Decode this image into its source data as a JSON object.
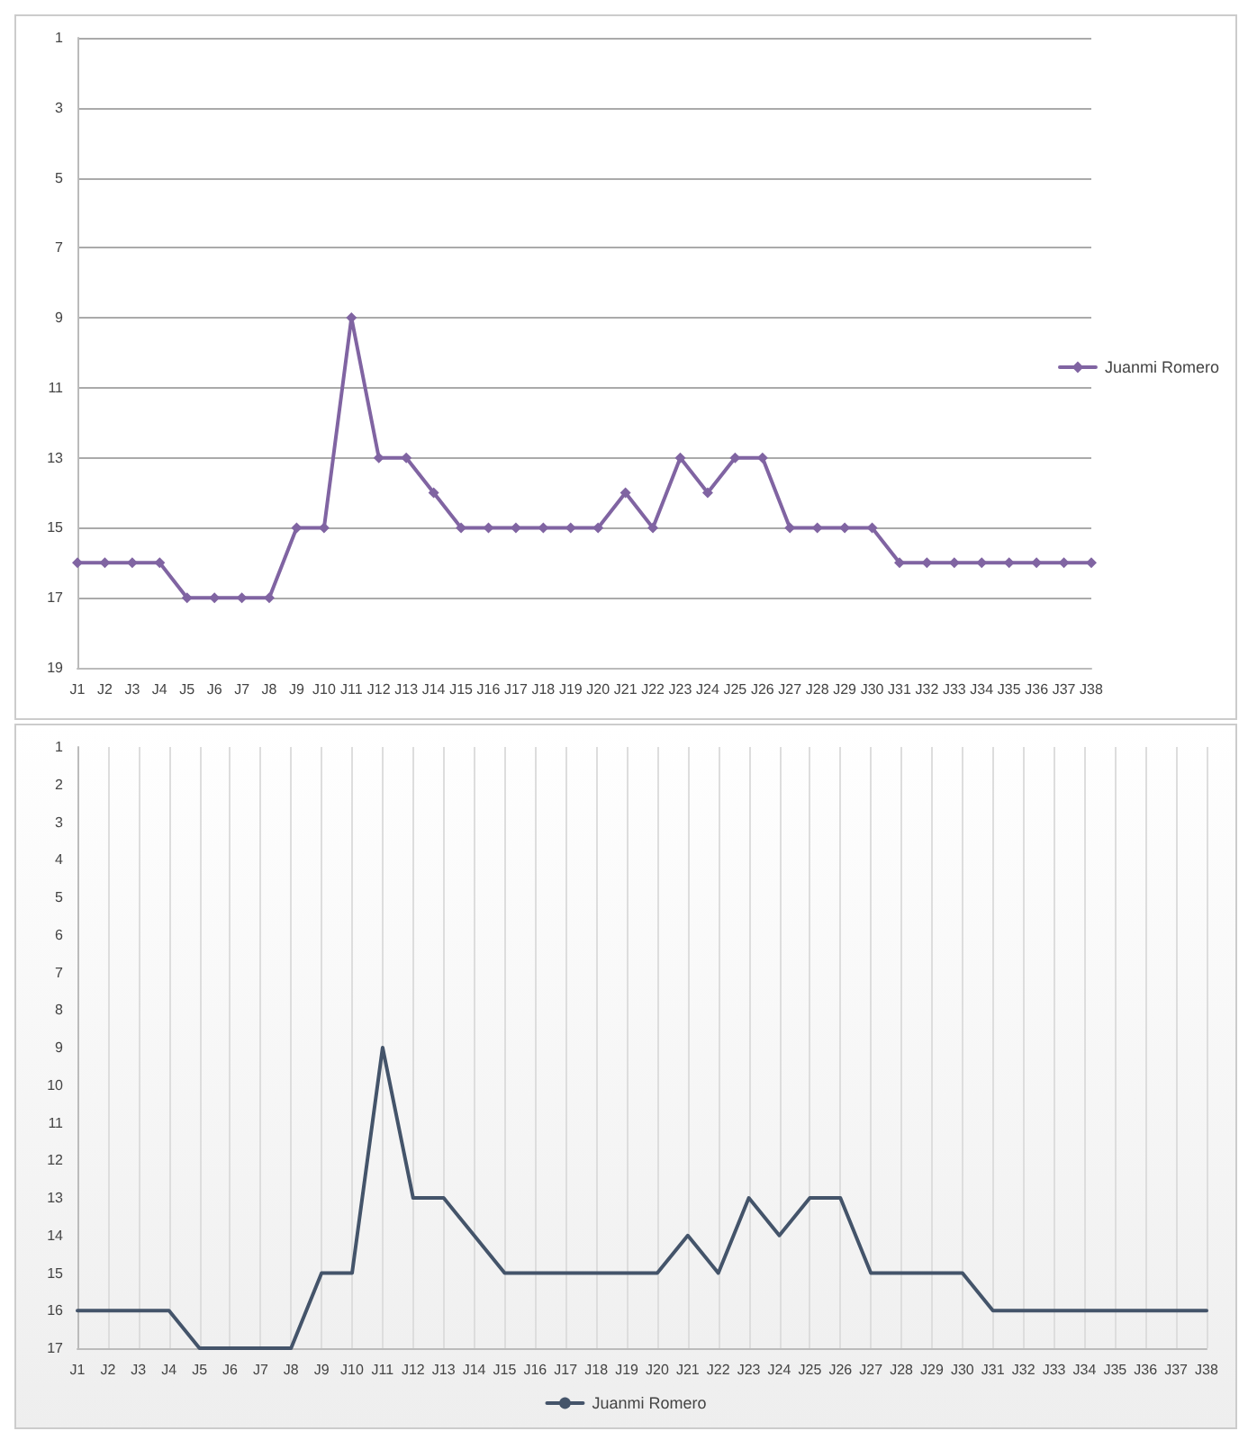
{
  "chart_data": [
    {
      "type": "line",
      "categories": [
        "J1",
        "J2",
        "J3",
        "J4",
        "J5",
        "J6",
        "J7",
        "J8",
        "J9",
        "J10",
        "J11",
        "J12",
        "J13",
        "J14",
        "J15",
        "J16",
        "J17",
        "J18",
        "J19",
        "J20",
        "J21",
        "J22",
        "J23",
        "J24",
        "J25",
        "J26",
        "J27",
        "J28",
        "J29",
        "J30",
        "J31",
        "J32",
        "J33",
        "J34",
        "J35",
        "J36",
        "J37",
        "J38"
      ],
      "series": [
        {
          "name": "Juanmi Romero",
          "color": "#8064a2",
          "values": [
            16,
            16,
            16,
            16,
            17,
            17,
            17,
            17,
            15,
            15,
            9,
            13,
            13,
            14,
            15,
            15,
            15,
            15,
            15,
            15,
            14,
            15,
            13,
            14,
            13,
            13,
            15,
            15,
            15,
            15,
            16,
            16,
            16,
            16,
            16,
            16,
            16,
            16
          ]
        }
      ],
      "ylim": [
        19,
        1
      ],
      "yticks": [
        1,
        3,
        5,
        7,
        9,
        11,
        13,
        15,
        17,
        19
      ],
      "grid": "y",
      "legend": "right",
      "marker": "diamond",
      "line_style": "solid"
    },
    {
      "type": "line",
      "categories": [
        "J1",
        "J2",
        "J3",
        "J4",
        "J5",
        "J6",
        "J7",
        "J8",
        "J9",
        "J10",
        "J11",
        "J12",
        "J13",
        "J14",
        "J15",
        "J16",
        "J17",
        "J18",
        "J19",
        "J20",
        "J21",
        "J22",
        "J23",
        "J24",
        "J25",
        "J26",
        "J27",
        "J28",
        "J29",
        "J30",
        "J31",
        "J32",
        "J33",
        "J34",
        "J35",
        "J36",
        "J37",
        "J38"
      ],
      "series": [
        {
          "name": "Juanmi Romero",
          "color": "#44546a",
          "values": [
            16,
            16,
            16,
            16,
            17,
            17,
            17,
            17,
            15,
            15,
            9,
            13,
            13,
            14,
            15,
            15,
            15,
            15,
            15,
            15,
            14,
            15,
            13,
            14,
            13,
            13,
            15,
            15,
            15,
            15,
            16,
            16,
            16,
            16,
            16,
            16,
            16,
            16
          ]
        }
      ],
      "ylim": [
        17,
        1
      ],
      "yticks": [
        1,
        2,
        3,
        4,
        5,
        6,
        7,
        8,
        9,
        10,
        11,
        12,
        13,
        14,
        15,
        16,
        17
      ],
      "grid": "x",
      "legend": "bottom",
      "marker": "none",
      "line_style": "solid"
    }
  ]
}
